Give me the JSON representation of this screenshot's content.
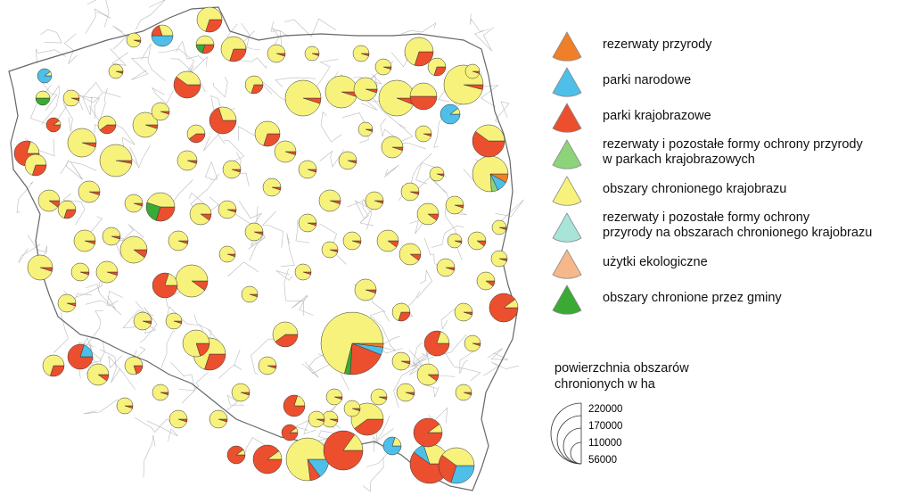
{
  "legend": {
    "items": [
      {
        "label": "rezerwaty przyrody",
        "color": "#f07f2a"
      },
      {
        "label": "parki narodowe",
        "color": "#4dbfe8"
      },
      {
        "label": "parki krajobrazowe",
        "color": "#ec4f2e"
      },
      {
        "label": "rezerwaty i pozostałe formy ochrony przyrody\nw parkach krajobrazowych",
        "color": "#8dd37a"
      },
      {
        "label": "obszary chronionego krajobrazu",
        "color": "#f7f27c"
      },
      {
        "label": "rezerwaty i pozostałe formy ochrony\nprzyrody na obszarach chronionego krajobrazu",
        "color": "#a8e4d8"
      },
      {
        "label": "użytki ekologiczne",
        "color": "#f6b88a"
      },
      {
        "label": "obszary chronione przez gminy",
        "color": "#3aaa35"
      }
    ],
    "size_title": "powierzchnia obszarów\nchronionych w ha",
    "size_values": [
      "220000",
      "170000",
      "110000",
      "56000"
    ]
  },
  "map": {
    "outline_color": "#666666",
    "border_color": "#bbbbbb"
  }
}
